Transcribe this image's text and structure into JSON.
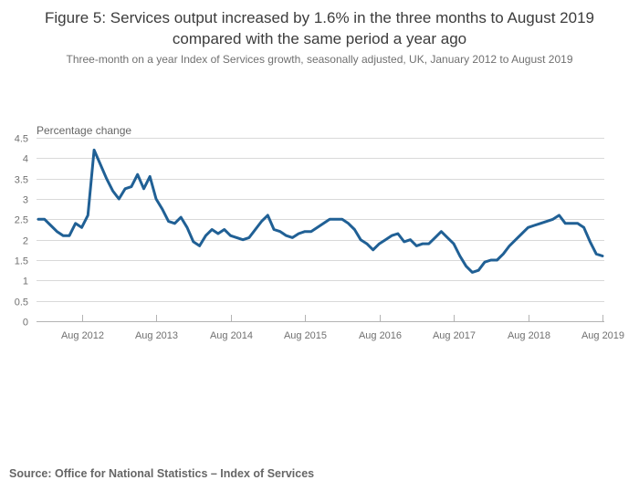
{
  "header": {
    "title": "Figure 5: Services output increased by 1.6% in the three months to August 2019 compared with the same period a year ago",
    "subtitle": "Three-month on a year Index of Services growth, seasonally adjusted, UK, January 2012 to August 2019"
  },
  "footer": {
    "source": "Source: Office for National Statistics – Index of Services"
  },
  "chart_data": {
    "type": "line",
    "title": "Figure 5: Services output increased by 1.6% in the three months to August 2019 compared with the same period a year ago",
    "subtitle": "Three-month on a year Index of Services growth, seasonally adjusted, UK, January 2012 to August 2019",
    "ylabel": "Percentage change",
    "unit": "percent",
    "x_range": {
      "start": "January 2012",
      "end": "August 2019",
      "frequency": "monthly"
    },
    "ylim": [
      0,
      4.5
    ],
    "grid": "horizontal",
    "legend": "none",
    "y_ticks": [
      "0",
      "0.5",
      "1",
      "1.5",
      "2",
      "2.5",
      "3",
      "3.5",
      "4",
      "4.5"
    ],
    "x_tick_labels": [
      "Aug 2012",
      "Aug 2013",
      "Aug 2014",
      "Aug 2015",
      "Aug 2016",
      "Aug 2017",
      "Aug 2018",
      "Aug 2019"
    ],
    "x_tick_month_indices": [
      7,
      19,
      31,
      43,
      55,
      67,
      79,
      91
    ],
    "values": [
      2.5,
      2.5,
      2.35,
      2.2,
      2.1,
      2.1,
      2.4,
      2.3,
      2.6,
      4.2,
      3.85,
      3.5,
      3.2,
      3.0,
      3.25,
      3.3,
      3.6,
      3.25,
      3.55,
      3.0,
      2.75,
      2.45,
      2.4,
      2.55,
      2.3,
      1.95,
      1.85,
      2.1,
      2.25,
      2.15,
      2.25,
      2.1,
      2.05,
      2.0,
      2.05,
      2.25,
      2.45,
      2.6,
      2.25,
      2.2,
      2.1,
      2.05,
      2.15,
      2.2,
      2.2,
      2.3,
      2.4,
      2.5,
      2.5,
      2.5,
      2.4,
      2.25,
      2.0,
      1.9,
      1.75,
      1.9,
      2.0,
      2.1,
      2.15,
      1.95,
      2.0,
      1.85,
      1.9,
      1.9,
      2.05,
      2.2,
      2.05,
      1.9,
      1.6,
      1.35,
      1.2,
      1.25,
      1.45,
      1.5,
      1.5,
      1.65,
      1.85,
      2.0,
      2.15,
      2.3,
      2.35,
      2.4,
      2.45,
      2.5,
      2.6,
      2.4,
      2.4,
      2.4,
      2.3,
      1.95,
      1.65,
      1.6
    ],
    "last_value": "1.6",
    "colors": {
      "line": "#206095",
      "grid": "#d9d9d9",
      "axis": "#b3b3b3",
      "tick_text": "#707070",
      "axis_title_text": "#666666",
      "title_text": "#3c3c3c",
      "source_text": "#666666"
    }
  }
}
